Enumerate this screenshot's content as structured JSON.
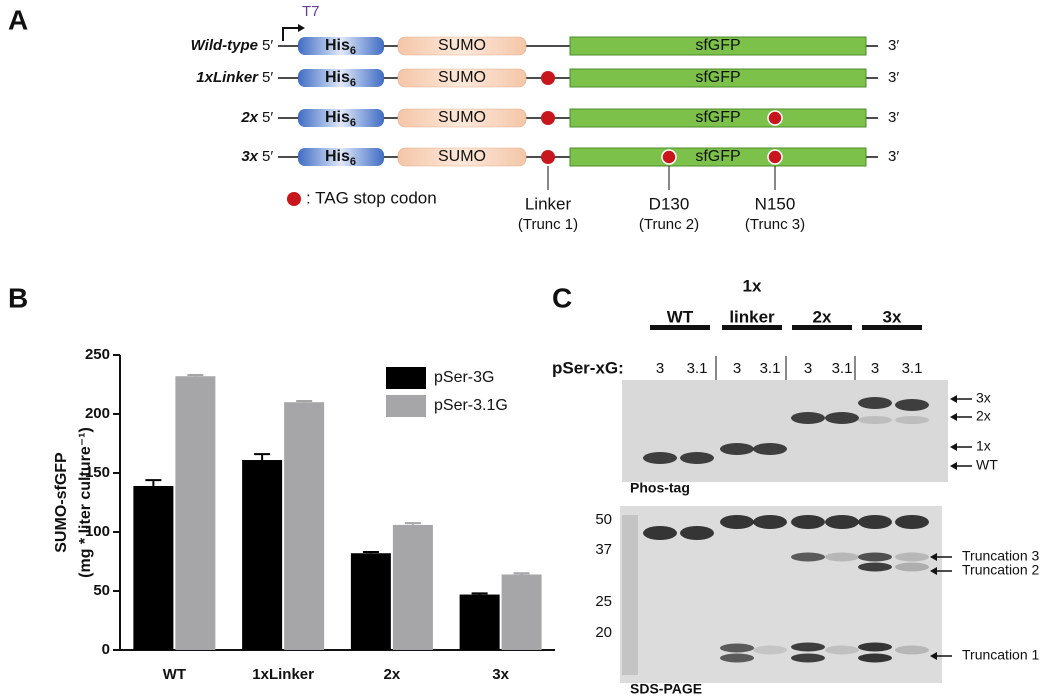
{
  "panel_a": {
    "label": "A",
    "promoter": "T7",
    "five_prime": "5′",
    "three_prime": "3′",
    "his_tag": "His",
    "his_sub": "6",
    "sumo": "SUMO",
    "sfgfp": "sfGFP",
    "rows": [
      "Wild-type",
      "1xLinker",
      "2x",
      "3x"
    ],
    "legend": ": TAG stop codon",
    "sites": [
      {
        "name": "Linker",
        "trunc": "(Trunc 1)"
      },
      {
        "name": "D130",
        "trunc": "(Trunc 2)"
      },
      {
        "name": "N150",
        "trunc": "(Trunc 3)"
      }
    ]
  },
  "chart_data": {
    "type": "bar",
    "panel_label": "B",
    "y_label": [
      "SUMO-sfGFP",
      "(mg * liter culture⁻¹)"
    ],
    "categories": [
      "WT",
      "1xLinker",
      "2x",
      "3x"
    ],
    "series": [
      {
        "name": "pSer-3G",
        "color": "#000000",
        "values": [
          139,
          161,
          82,
          47
        ],
        "errors": [
          5,
          5,
          1,
          1
        ]
      },
      {
        "name": "pSer-3.1G",
        "color": "#a6a6a8",
        "values": [
          232,
          210,
          106,
          64
        ],
        "errors": [
          1,
          1,
          1.5,
          1
        ]
      }
    ],
    "ylim": [
      0,
      250
    ],
    "yticks": [
      0,
      50,
      100,
      150,
      200,
      250
    ],
    "grid": false,
    "legend": "top-right"
  },
  "panel_c": {
    "label": "C",
    "groups": [
      [
        "WT"
      ],
      [
        "1x",
        "linker"
      ],
      [
        "2x"
      ],
      [
        "3x"
      ]
    ],
    "row_label": "pSer-xG:",
    "lanes": [
      "3",
      "3.1",
      "3",
      "3.1",
      "3",
      "3.1",
      "3",
      "3.1"
    ],
    "phos_label": "Phos-tag",
    "phos_markers": [
      "3x",
      "2x",
      "1x",
      "WT"
    ],
    "sds_label": "SDS-PAGE",
    "ladder": [
      "50",
      "37",
      "25",
      "20"
    ],
    "truncations": [
      "Truncation 3",
      "Truncation 2",
      "Truncation 1"
    ]
  }
}
